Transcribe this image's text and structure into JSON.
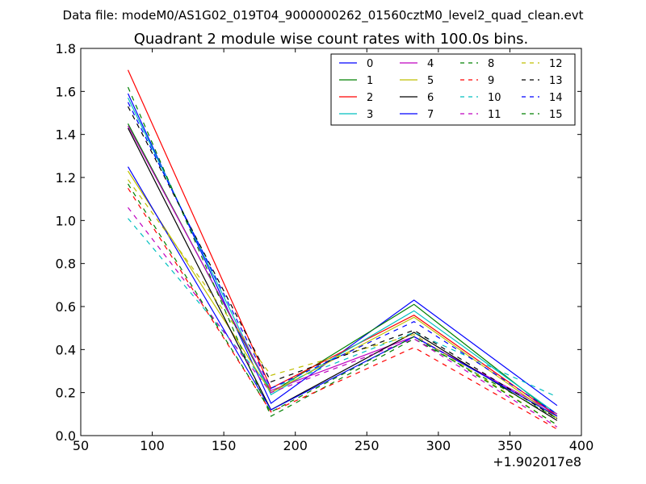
{
  "suptitle": "Data file: modeM0/AS1G02_019T04_9000000262_01560cztM0_level2_quad_clean.evt",
  "chart_data": {
    "type": "line",
    "title": "Quadrant 2 module wise count rates with 100.0s bins.",
    "xlabel": "",
    "ylabel": "",
    "x_offset_label": "+1.902017e8",
    "x": [
      83,
      183,
      283,
      383
    ],
    "xlim": [
      50,
      400
    ],
    "ylim": [
      0.0,
      1.8
    ],
    "xticks": [
      50,
      100,
      150,
      200,
      250,
      300,
      350,
      400
    ],
    "yticks": [
      0.0,
      0.2,
      0.4,
      0.6,
      0.8,
      1.0,
      1.2,
      1.4,
      1.6,
      1.8
    ],
    "xtick_labels": [
      "50",
      "100",
      "150",
      "200",
      "250",
      "300",
      "350",
      "400"
    ],
    "ytick_labels": [
      "0.0",
      "0.2",
      "0.4",
      "0.6",
      "0.8",
      "1.0",
      "1.2",
      "1.4",
      "1.6",
      "1.8"
    ],
    "grid": false,
    "legend_position": "top-right",
    "legend_columns": 4,
    "series": [
      {
        "name": "0",
        "color": "#0000ff",
        "dash": "solid",
        "values": [
          1.59,
          0.15,
          0.63,
          0.14
        ]
      },
      {
        "name": "1",
        "color": "#008000",
        "dash": "solid",
        "values": [
          1.45,
          0.2,
          0.61,
          0.09
        ]
      },
      {
        "name": "2",
        "color": "#ff0000",
        "dash": "solid",
        "values": [
          1.7,
          0.22,
          0.56,
          0.09
        ]
      },
      {
        "name": "3",
        "color": "#00bfbf",
        "dash": "solid",
        "values": [
          1.57,
          0.19,
          0.58,
          0.1
        ]
      },
      {
        "name": "4",
        "color": "#bf00bf",
        "dash": "solid",
        "values": [
          1.44,
          0.21,
          0.46,
          0.1
        ]
      },
      {
        "name": "5",
        "color": "#bfbf00",
        "dash": "solid",
        "values": [
          1.23,
          0.2,
          0.55,
          0.08
        ]
      },
      {
        "name": "6",
        "color": "#000000",
        "dash": "solid",
        "values": [
          1.43,
          0.12,
          0.48,
          0.07
        ]
      },
      {
        "name": "7",
        "color": "#0000ff",
        "dash": "solid",
        "values": [
          1.25,
          0.12,
          0.46,
          0.09
        ]
      },
      {
        "name": "8",
        "color": "#008000",
        "dash": "dashed",
        "values": [
          1.62,
          0.09,
          0.45,
          0.08
        ]
      },
      {
        "name": "9",
        "color": "#ff0000",
        "dash": "dashed",
        "values": [
          1.15,
          0.11,
          0.41,
          0.03
        ]
      },
      {
        "name": "10",
        "color": "#00bfbf",
        "dash": "dashed",
        "values": [
          1.01,
          0.22,
          0.48,
          0.18
        ]
      },
      {
        "name": "11",
        "color": "#bf00bf",
        "dash": "dashed",
        "values": [
          1.06,
          0.2,
          0.45,
          0.04
        ]
      },
      {
        "name": "12",
        "color": "#bfbf00",
        "dash": "dashed",
        "values": [
          1.19,
          0.28,
          0.47,
          0.05
        ]
      },
      {
        "name": "13",
        "color": "#000000",
        "dash": "dashed",
        "values": [
          1.53,
          0.25,
          0.49,
          0.08
        ]
      },
      {
        "name": "14",
        "color": "#0000ff",
        "dash": "dashed",
        "values": [
          1.55,
          0.22,
          0.53,
          0.1
        ]
      },
      {
        "name": "15",
        "color": "#008000",
        "dash": "dashed",
        "values": [
          1.17,
          0.11,
          0.46,
          0.05
        ]
      }
    ]
  }
}
